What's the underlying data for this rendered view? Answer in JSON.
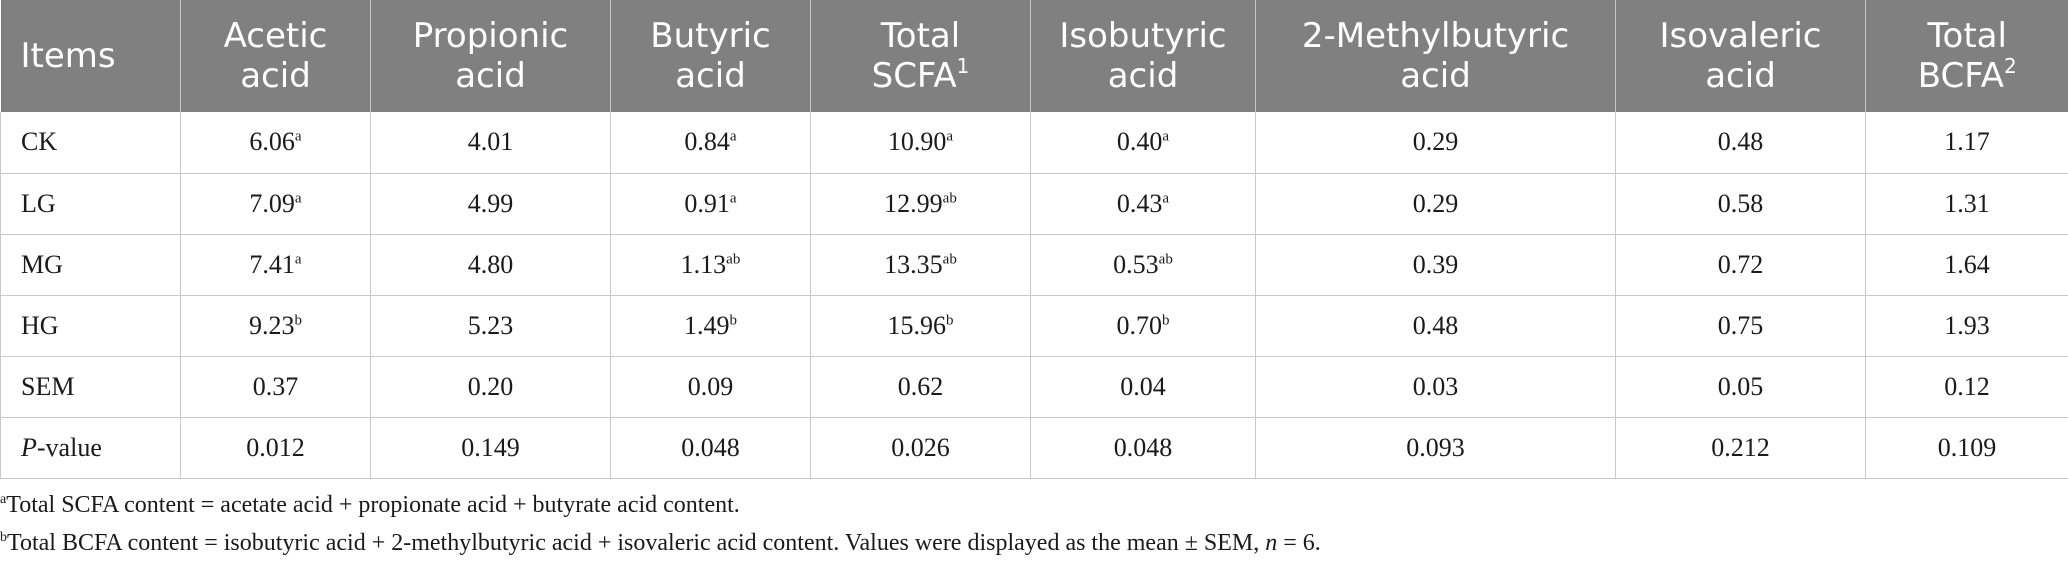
{
  "table": {
    "headers": [
      {
        "line1": "Items",
        "line2": "",
        "sup": ""
      },
      {
        "line1": "Acetic",
        "line2": "acid",
        "sup": ""
      },
      {
        "line1": "Propionic",
        "line2": "acid",
        "sup": ""
      },
      {
        "line1": "Butyric",
        "line2": "acid",
        "sup": ""
      },
      {
        "line1": "Total",
        "line2": "SCFA",
        "sup": "1"
      },
      {
        "line1": "Isobutyric",
        "line2": "acid",
        "sup": ""
      },
      {
        "line1": "2-Methylbutyric",
        "line2": "acid",
        "sup": ""
      },
      {
        "line1": "Isovaleric",
        "line2": "acid",
        "sup": ""
      },
      {
        "line1": "Total",
        "line2": "BCFA",
        "sup": "2"
      }
    ],
    "rows": [
      {
        "label": "CK",
        "label_prefix": "",
        "label_suffix": "",
        "cells": [
          {
            "value": "6.06",
            "sup": "a"
          },
          {
            "value": "4.01",
            "sup": ""
          },
          {
            "value": "0.84",
            "sup": "a"
          },
          {
            "value": "10.90",
            "sup": "a"
          },
          {
            "value": "0.40",
            "sup": "a"
          },
          {
            "value": "0.29",
            "sup": ""
          },
          {
            "value": "0.48",
            "sup": ""
          },
          {
            "value": "1.17",
            "sup": ""
          }
        ]
      },
      {
        "label": "LG",
        "label_prefix": "",
        "label_suffix": "",
        "cells": [
          {
            "value": "7.09",
            "sup": "a"
          },
          {
            "value": "4.99",
            "sup": ""
          },
          {
            "value": "0.91",
            "sup": "a"
          },
          {
            "value": "12.99",
            "sup": "ab"
          },
          {
            "value": "0.43",
            "sup": "a"
          },
          {
            "value": "0.29",
            "sup": ""
          },
          {
            "value": "0.58",
            "sup": ""
          },
          {
            "value": "1.31",
            "sup": ""
          }
        ]
      },
      {
        "label": "MG",
        "label_prefix": "",
        "label_suffix": "",
        "cells": [
          {
            "value": "7.41",
            "sup": "a"
          },
          {
            "value": "4.80",
            "sup": ""
          },
          {
            "value": "1.13",
            "sup": "ab"
          },
          {
            "value": "13.35",
            "sup": "ab"
          },
          {
            "value": "0.53",
            "sup": "ab"
          },
          {
            "value": "0.39",
            "sup": ""
          },
          {
            "value": "0.72",
            "sup": ""
          },
          {
            "value": "1.64",
            "sup": ""
          }
        ]
      },
      {
        "label": "HG",
        "label_prefix": "",
        "label_suffix": "",
        "cells": [
          {
            "value": "9.23",
            "sup": "b"
          },
          {
            "value": "5.23",
            "sup": ""
          },
          {
            "value": "1.49",
            "sup": "b"
          },
          {
            "value": "15.96",
            "sup": "b"
          },
          {
            "value": "0.70",
            "sup": "b"
          },
          {
            "value": "0.48",
            "sup": ""
          },
          {
            "value": "0.75",
            "sup": ""
          },
          {
            "value": "1.93",
            "sup": ""
          }
        ]
      },
      {
        "label": "SEM",
        "label_prefix": "",
        "label_suffix": "",
        "cells": [
          {
            "value": "0.37",
            "sup": ""
          },
          {
            "value": "0.20",
            "sup": ""
          },
          {
            "value": "0.09",
            "sup": ""
          },
          {
            "value": "0.62",
            "sup": ""
          },
          {
            "value": "0.04",
            "sup": ""
          },
          {
            "value": "0.03",
            "sup": ""
          },
          {
            "value": "0.05",
            "sup": ""
          },
          {
            "value": "0.12",
            "sup": ""
          }
        ]
      },
      {
        "label": "",
        "label_prefix": "P",
        "label_suffix": "-value",
        "cells": [
          {
            "value": "0.012",
            "sup": ""
          },
          {
            "value": "0.149",
            "sup": ""
          },
          {
            "value": "0.048",
            "sup": ""
          },
          {
            "value": "0.026",
            "sup": ""
          },
          {
            "value": "0.048",
            "sup": ""
          },
          {
            "value": "0.093",
            "sup": ""
          },
          {
            "value": "0.212",
            "sup": ""
          },
          {
            "value": "0.109",
            "sup": ""
          }
        ]
      }
    ]
  },
  "footnotes": [
    {
      "marker": "a",
      "text": "Total SCFA content = acetate acid + propionate acid + butyrate acid content.",
      "tail_prefix": "",
      "tail_italic": "",
      "tail_suffix": ""
    },
    {
      "marker": "b",
      "text": "Total BCFA content = isobutyric acid + 2-methylbutyric acid + isovaleric acid content. Values were displayed as the mean ± SEM, ",
      "tail_prefix": "",
      "tail_italic": "n",
      "tail_suffix": " = 6."
    }
  ],
  "colors": {
    "header_background": "#808080",
    "header_text": "#ffffff",
    "grid_line": "#c9c9c9",
    "body_text": "#1a1a1a"
  }
}
